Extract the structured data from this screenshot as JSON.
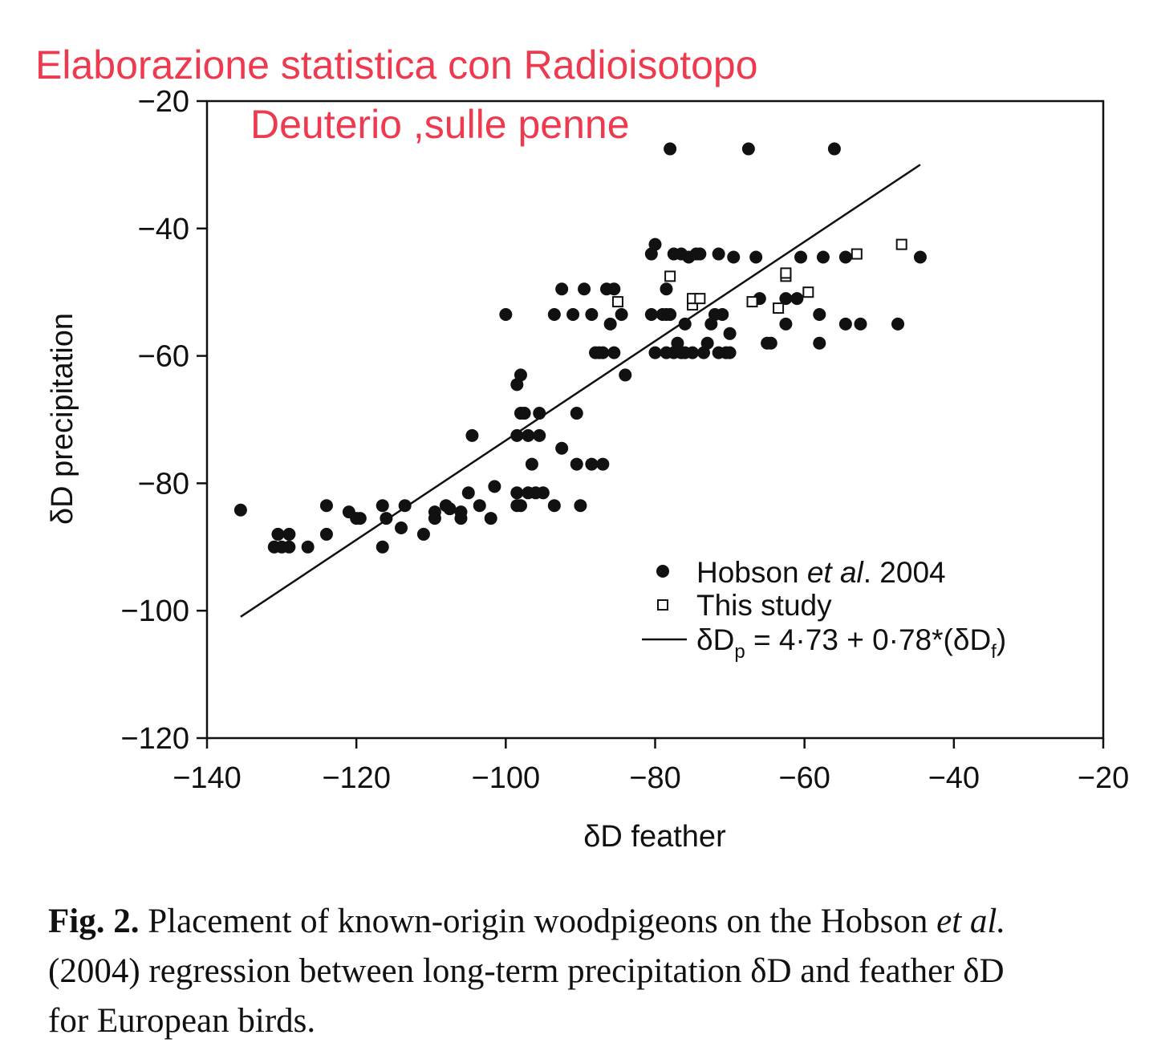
{
  "annotation": {
    "line1": "Elaborazione statistica con Radioisotopo",
    "line2": "Deuterio ,sulle penne",
    "color": "#ee3a4f"
  },
  "chart_data": {
    "type": "scatter",
    "xlabel": "δD feather",
    "ylabel": "δD precipitation",
    "xlim": [
      -140,
      -20
    ],
    "ylim": [
      -120,
      -20
    ],
    "xticks": [
      -140,
      -120,
      -100,
      -80,
      -60,
      -40,
      -20
    ],
    "yticks": [
      -120,
      -100,
      -80,
      -60,
      -40,
      -20
    ],
    "xtick_labels": [
      "−140",
      "−120",
      "−100",
      "−80",
      "−60",
      "−40",
      "−20"
    ],
    "ytick_labels": [
      "−120",
      "−100",
      "−80",
      "−60",
      "−40",
      "−20"
    ],
    "grid": false,
    "legend_position": "bottom-right",
    "series": [
      {
        "name": "Hobson et al. 2004",
        "marker": "filled-circle",
        "color": "#111111",
        "points": [
          [
            -135.5,
            -84.2
          ],
          [
            -131,
            -90
          ],
          [
            -130.5,
            -88
          ],
          [
            -130,
            -90
          ],
          [
            -129,
            -88
          ],
          [
            -129,
            -90
          ],
          [
            -126.5,
            -90
          ],
          [
            -124,
            -88
          ],
          [
            -124,
            -83.5
          ],
          [
            -121,
            -84.5
          ],
          [
            -120,
            -85.5
          ],
          [
            -119.5,
            -85.5
          ],
          [
            -116.5,
            -90
          ],
          [
            -116.5,
            -83.5
          ],
          [
            -116,
            -85.5
          ],
          [
            -114,
            -87
          ],
          [
            -113.5,
            -83.5
          ],
          [
            -111,
            -88
          ],
          [
            -109.5,
            -84.5
          ],
          [
            -109.5,
            -85.5
          ],
          [
            -108,
            -83.5
          ],
          [
            -107.5,
            -84
          ],
          [
            -106,
            -85.5
          ],
          [
            -106,
            -84.5
          ],
          [
            -105,
            -81.5
          ],
          [
            -104.5,
            -72.5
          ],
          [
            -103.5,
            -83.5
          ],
          [
            -102,
            -85.5
          ],
          [
            -101.5,
            -80.5
          ],
          [
            -100,
            -53.5
          ],
          [
            -98.5,
            -81.5
          ],
          [
            -98.5,
            -83.5
          ],
          [
            -98.5,
            -72.5
          ],
          [
            -98.5,
            -64.5
          ],
          [
            -98,
            -63
          ],
          [
            -98,
            -69
          ],
          [
            -98,
            -83.5
          ],
          [
            -97.5,
            -69
          ],
          [
            -97,
            -72.5
          ],
          [
            -97,
            -81.5
          ],
          [
            -96.5,
            -77
          ],
          [
            -96,
            -81.5
          ],
          [
            -95.5,
            -72.5
          ],
          [
            -95.5,
            -69
          ],
          [
            -95,
            -81.5
          ],
          [
            -93.5,
            -83.5
          ],
          [
            -93.5,
            -53.5
          ],
          [
            -92.5,
            -49.5
          ],
          [
            -92.5,
            -74.5
          ],
          [
            -91,
            -53.5
          ],
          [
            -90.5,
            -77
          ],
          [
            -90.5,
            -69
          ],
          [
            -90,
            -83.5
          ],
          [
            -89.5,
            -49.5
          ],
          [
            -88.5,
            -77
          ],
          [
            -88.5,
            -53.5
          ],
          [
            -88,
            -59.5
          ],
          [
            -87.5,
            -59.5
          ],
          [
            -87,
            -59.5
          ],
          [
            -87,
            -77
          ],
          [
            -86.5,
            -49.5
          ],
          [
            -86,
            -55
          ],
          [
            -85.5,
            -49.5
          ],
          [
            -85.5,
            -59.5
          ],
          [
            -84.5,
            -53.5
          ],
          [
            -84,
            -63
          ],
          [
            -80.5,
            -44
          ],
          [
            -80.5,
            -53.5
          ],
          [
            -80,
            -59.5
          ],
          [
            -80,
            -42.5
          ],
          [
            -79,
            -53.5
          ],
          [
            -78.5,
            -53.5
          ],
          [
            -78.5,
            -49.5
          ],
          [
            -78.5,
            -59.5
          ],
          [
            -78,
            -27.5
          ],
          [
            -78,
            -53.5
          ],
          [
            -77.5,
            -44
          ],
          [
            -77.5,
            -59.5
          ],
          [
            -77,
            -58
          ],
          [
            -76.5,
            -59.5
          ],
          [
            -76.5,
            -44
          ],
          [
            -76,
            -55
          ],
          [
            -76,
            -59.5
          ],
          [
            -75.5,
            -44.5
          ],
          [
            -75,
            -59.5
          ],
          [
            -74.5,
            -44
          ],
          [
            -74,
            -44
          ],
          [
            -73.5,
            -59.5
          ],
          [
            -73,
            -58
          ],
          [
            -72.5,
            -55
          ],
          [
            -72,
            -53.5
          ],
          [
            -71.5,
            -59.5
          ],
          [
            -71.5,
            -44
          ],
          [
            -71,
            -53.5
          ],
          [
            -70.5,
            -59.5
          ],
          [
            -70,
            -56.5
          ],
          [
            -70,
            -59.5
          ],
          [
            -69.5,
            -44.5
          ],
          [
            -67.5,
            -27.5
          ],
          [
            -66.5,
            -44.5
          ],
          [
            -66,
            -51
          ],
          [
            -65,
            -58
          ],
          [
            -64.5,
            -58
          ],
          [
            -62.5,
            -51
          ],
          [
            -62.5,
            -55
          ],
          [
            -61,
            -51
          ],
          [
            -60.5,
            -44.5
          ],
          [
            -58,
            -58
          ],
          [
            -58,
            -53.5
          ],
          [
            -57.5,
            -44.5
          ],
          [
            -56,
            -27.5
          ],
          [
            -54.5,
            -44.5
          ],
          [
            -54.5,
            -55
          ],
          [
            -52.5,
            -55
          ],
          [
            -47.5,
            -55
          ],
          [
            -44.5,
            -44.5
          ]
        ]
      },
      {
        "name": "This study",
        "marker": "open-square",
        "color": "#111111",
        "points": [
          [
            -85,
            -51.5
          ],
          [
            -78,
            -47.5
          ],
          [
            -75,
            -52
          ],
          [
            -75,
            -51
          ],
          [
            -74,
            -51
          ],
          [
            -67,
            -51.5
          ],
          [
            -63.5,
            -52.5
          ],
          [
            -62.5,
            -47.5
          ],
          [
            -62.5,
            -47
          ],
          [
            -59.5,
            -50
          ],
          [
            -53,
            -44
          ],
          [
            -47,
            -42.5
          ]
        ]
      },
      {
        "name": "δDp = 4·73 + 0·78*(δDf)",
        "type": "line",
        "color": "#111111",
        "intercept": 4.73,
        "slope": 0.78,
        "x_range": [
          -135.5,
          -44.5
        ]
      }
    ]
  },
  "legend": {
    "hobson_prefix": "Hobson ",
    "hobson_italic": "et al",
    "hobson_suffix": ". 2004",
    "this_study": "This study",
    "eq_lhs": "δD",
    "eq_lhs_sub": "p",
    "eq_rhs": " = 4·73 + 0·78*(δD",
    "eq_rhs_sub": "f",
    "eq_close": ")"
  },
  "caption": {
    "lead": "Fig. 2.",
    "line1_text": " Placement of known-origin woodpigeons on the Hobson ",
    "line1_italic": "et al.",
    "line2": "(2004) regression between long-term precipitation δD and feather δD",
    "line3": "for European birds."
  }
}
